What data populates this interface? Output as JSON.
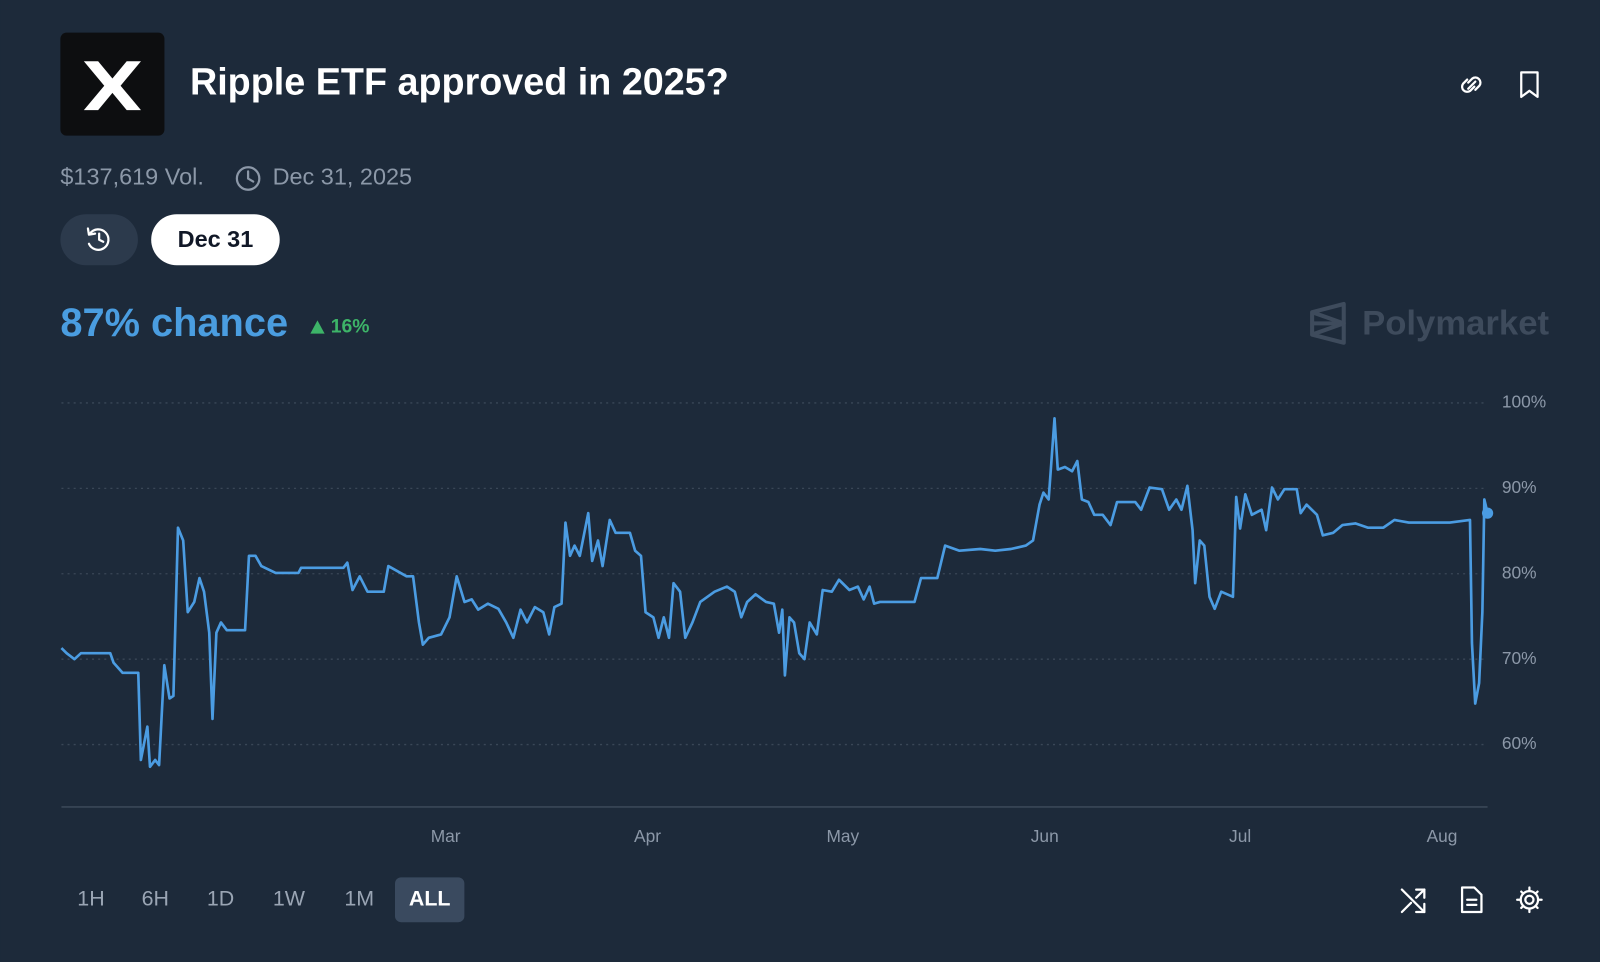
{
  "header": {
    "title": "Ripple ETF approved in 2025?",
    "volume": "$137,619 Vol.",
    "end_date": "Dec 31, 2025"
  },
  "date_tabs": [
    "Dec 31"
  ],
  "chance": {
    "label": "87% chance",
    "change": "16%"
  },
  "brand": "Polymarket",
  "range_buttons": [
    "1H",
    "6H",
    "1D",
    "1W",
    "1M",
    "ALL"
  ],
  "active_range": "ALL",
  "chart_data": {
    "type": "line",
    "x": [
      0,
      0.8,
      2,
      3,
      5,
      7.5,
      8,
      9.4,
      11.8,
      12.2,
      13.2,
      13.6,
      14.4,
      15,
      15.8,
      16.6,
      17.2,
      17.9,
      18.7,
      19.4,
      20.4,
      21.2,
      21.9,
      22.7,
      23.2,
      23.8,
      24.5,
      25.4,
      28.2,
      28.8,
      29.8,
      30.7,
      32.9,
      36.4,
      36.8,
      43.3,
      43.9,
      44.7,
      45.8,
      47,
      49.5,
      50.2,
      53,
      54,
      54.9,
      55.5,
      56.4,
      58.3,
      59.6,
      60.7,
      61.9,
      63,
      64,
      65.5,
      67.1,
      68.3,
      69.4,
      70.5,
      71.5,
      72.7,
      74,
      74.9,
      75.7,
      76.8,
      77.4,
      78.1,
      78.8,
      79.6,
      80.9,
      81.5,
      82.4,
      83.1,
      84.2,
      85.1,
      87.3,
      88.1,
      89,
      89.7,
      90.9,
      91.7,
      92.5,
      93.3,
      94,
      95,
      95.8,
      96.9,
      98.1,
      100.3,
      102.2,
      103.4,
      104.4,
      105.3,
      106.6,
      108.2,
      109.4,
      110.2,
      110.7,
      111.1,
      111.8,
      112.5,
      113.3,
      114.1,
      114.9,
      116,
      116.9,
      118.3,
      119.4,
      121,
      122.3,
      123.2,
      124.1,
      124.8,
      125.7,
      131,
      132,
      134.5,
      135.7,
      137.9,
      141.1,
      143.4,
      145.8,
      148.1,
      149.2,
      150.2,
      150.8,
      151.6,
      152.5,
      153,
      154.1,
      155.2,
      156,
      156.7,
      157.7,
      158.6,
      159.9,
      161.1,
      162.1,
      164.9,
      165.8,
      167.1,
      169,
      170.1,
      171.2,
      172,
      172.9,
      173.7,
      174.1,
      174.8,
      175.5,
      176.3,
      177.1,
      178.1,
      179.9,
      180.4,
      181,
      181.8,
      182.8,
      184.3,
      185,
      185.9,
      186.8,
      187.8,
      189.7,
      190.3,
      191.2,
      192.8,
      193.7,
      195.3,
      196.7,
      198.7,
      200.6,
      203,
      204.7,
      206.9,
      210,
      213.2,
      216.3,
      216.6,
      217.1,
      217.7,
      218.2,
      218.5,
      219
    ],
    "series": [
      {
        "color": "#4b9ce2",
        "values": [
          71.3,
          70.7,
          70,
          70.7,
          70.7,
          70.7,
          69.6,
          68.4,
          68.4,
          58.2,
          62.1,
          57.4,
          58.2,
          57.6,
          69.3,
          65.4,
          65.7,
          85.4,
          83.9,
          75.5,
          76.7,
          79.5,
          77.9,
          73.1,
          63,
          73.1,
          74.3,
          73.4,
          73.4,
          82.1,
          82.1,
          80.9,
          80.1,
          80.1,
          80.7,
          80.7,
          81.3,
          78.1,
          79.7,
          77.9,
          77.9,
          80.9,
          79.7,
          79.7,
          74.3,
          71.7,
          72.5,
          72.9,
          74.9,
          79.7,
          76.7,
          77,
          75.8,
          76.5,
          75.9,
          74.3,
          72.5,
          75.8,
          74.3,
          76.1,
          75.5,
          72.9,
          76.1,
          76.5,
          86,
          82.1,
          83.3,
          82.1,
          87.1,
          81.5,
          83.9,
          80.9,
          86.3,
          84.8,
          84.8,
          82.7,
          82.1,
          75.5,
          74.9,
          72.5,
          74.9,
          72.5,
          78.9,
          77.9,
          72.5,
          74.3,
          76.7,
          77.9,
          78.5,
          77.9,
          74.9,
          76.7,
          77.6,
          76.7,
          76.5,
          73.1,
          75.8,
          68.1,
          74.9,
          74.3,
          70.7,
          70,
          74.3,
          72.9,
          78.1,
          77.9,
          79.3,
          78.1,
          78.5,
          77,
          78.5,
          76.5,
          76.7,
          76.7,
          79.5,
          79.5,
          83.3,
          82.7,
          82.9,
          82.7,
          82.9,
          83.3,
          83.9,
          88.1,
          89.5,
          88.7,
          98.2,
          92.2,
          92.5,
          92,
          93.2,
          88.7,
          88.4,
          86.9,
          86.9,
          85.7,
          88.4,
          88.4,
          87.5,
          90.1,
          89.9,
          87.5,
          88.7,
          87.5,
          90.3,
          85.1,
          78.9,
          83.9,
          83.3,
          77.3,
          75.9,
          77.9,
          77.3,
          89,
          85.3,
          89.3,
          86.9,
          87.5,
          85.1,
          90.1,
          88.7,
          89.9,
          89.9,
          87.1,
          88.1,
          86.9,
          84.5,
          84.8,
          85.7,
          85.9,
          85.4,
          85.4,
          86.3,
          86,
          86,
          86,
          86.3,
          71.9,
          64.8,
          67.2,
          75.5,
          88.7,
          87.1
        ]
      }
    ],
    "xlim": [
      0,
      219
    ],
    "xticks": [
      {
        "value": 59,
        "label": "Mar"
      },
      {
        "value": 90,
        "label": "Apr"
      },
      {
        "value": 120,
        "label": "May"
      },
      {
        "value": 151,
        "label": "Jun"
      },
      {
        "value": 181,
        "label": "Jul"
      },
      {
        "value": 212,
        "label": "Aug"
      }
    ],
    "ylim": [
      52.7,
      100
    ],
    "yticks": [
      {
        "value": 60,
        "label": "60%"
      },
      {
        "value": 70,
        "label": "70%"
      },
      {
        "value": 80,
        "label": "80%"
      },
      {
        "value": 90,
        "label": "90%"
      },
      {
        "value": 100,
        "label": "100%"
      }
    ],
    "grid": true
  }
}
